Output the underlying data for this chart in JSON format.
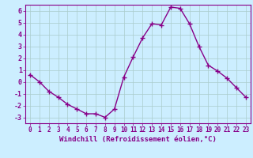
{
  "x": [
    0,
    1,
    2,
    3,
    4,
    5,
    6,
    7,
    8,
    9,
    10,
    11,
    12,
    13,
    14,
    15,
    16,
    17,
    18,
    19,
    20,
    21,
    22,
    23
  ],
  "y": [
    0.6,
    0.0,
    -0.8,
    -1.3,
    -1.9,
    -2.3,
    -2.7,
    -2.7,
    -3.0,
    -2.3,
    0.4,
    2.1,
    3.7,
    4.9,
    4.8,
    6.3,
    6.2,
    4.9,
    3.0,
    1.4,
    0.9,
    0.3,
    -0.5,
    -1.3
  ],
  "line_color": "#880088",
  "marker": "+",
  "marker_size": 4,
  "bg_color": "#cceeff",
  "grid_color": "#aacccc",
  "xlabel": "Windchill (Refroidissement éolien,°C)",
  "xlim": [
    -0.5,
    23.5
  ],
  "ylim": [
    -3.5,
    6.5
  ],
  "yticks": [
    -3,
    -2,
    -1,
    0,
    1,
    2,
    3,
    4,
    5,
    6
  ],
  "xticks": [
    0,
    1,
    2,
    3,
    4,
    5,
    6,
    7,
    8,
    9,
    10,
    11,
    12,
    13,
    14,
    15,
    16,
    17,
    18,
    19,
    20,
    21,
    22,
    23
  ],
  "tick_color": "#880088",
  "label_color": "#880088",
  "axis_color": "#880088",
  "font_family": "monospace"
}
